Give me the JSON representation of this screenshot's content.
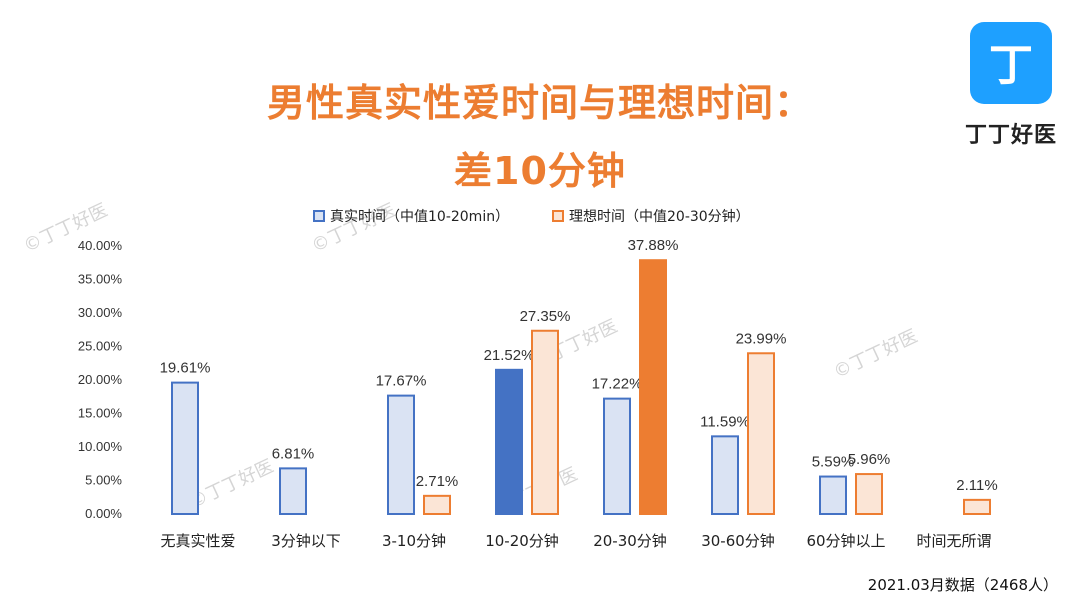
{
  "title_line1": "男性真实性爱时间与理想时间：",
  "title_line2": "差10分钟",
  "logo": {
    "brand": "丁丁好医",
    "mark": "丁"
  },
  "watermark_text": "©丁丁好医",
  "footer": "2021.03月数据（2468人）",
  "colors": {
    "title": "#ec7d31",
    "real_fill": "#dae3f3",
    "real_stroke": "#4472c4",
    "real_highlight": "#4472c4",
    "ideal_fill": "#fbe5d6",
    "ideal_stroke": "#ed7d31",
    "ideal_highlight": "#ed7d31",
    "logo": "#1ea0ff"
  },
  "chart_data": {
    "type": "bar",
    "categories": [
      "无真实性爱",
      "3分钟以下",
      "3-10分钟",
      "10-20分钟",
      "20-30分钟",
      "30-60分钟",
      "60分钟以上",
      "时间无所谓"
    ],
    "series": [
      {
        "name": "真实时间（中值10-20min）",
        "values": [
          19.61,
          6.81,
          17.67,
          21.52,
          17.22,
          11.59,
          5.59,
          null
        ],
        "labels": [
          "19.61%",
          "6.81%",
          "17.67%",
          "21.52%",
          "17.22%",
          "11.59%",
          "5.59%",
          ""
        ],
        "highlight_index": 3
      },
      {
        "name": "理想时间（中值20-30分钟）",
        "values": [
          null,
          null,
          2.71,
          27.35,
          37.88,
          23.99,
          5.96,
          2.11
        ],
        "labels": [
          "",
          "",
          "2.71%",
          "27.35%",
          "37.88%",
          "23.99%",
          "5.96%",
          "2.11%"
        ],
        "highlight_index": 4
      }
    ],
    "yticks": [
      "0.00%",
      "5.00%",
      "10.00%",
      "15.00%",
      "20.00%",
      "25.00%",
      "30.00%",
      "35.00%",
      "40.00%"
    ],
    "ylim": [
      0,
      40
    ],
    "grid": false,
    "legend": "top"
  }
}
